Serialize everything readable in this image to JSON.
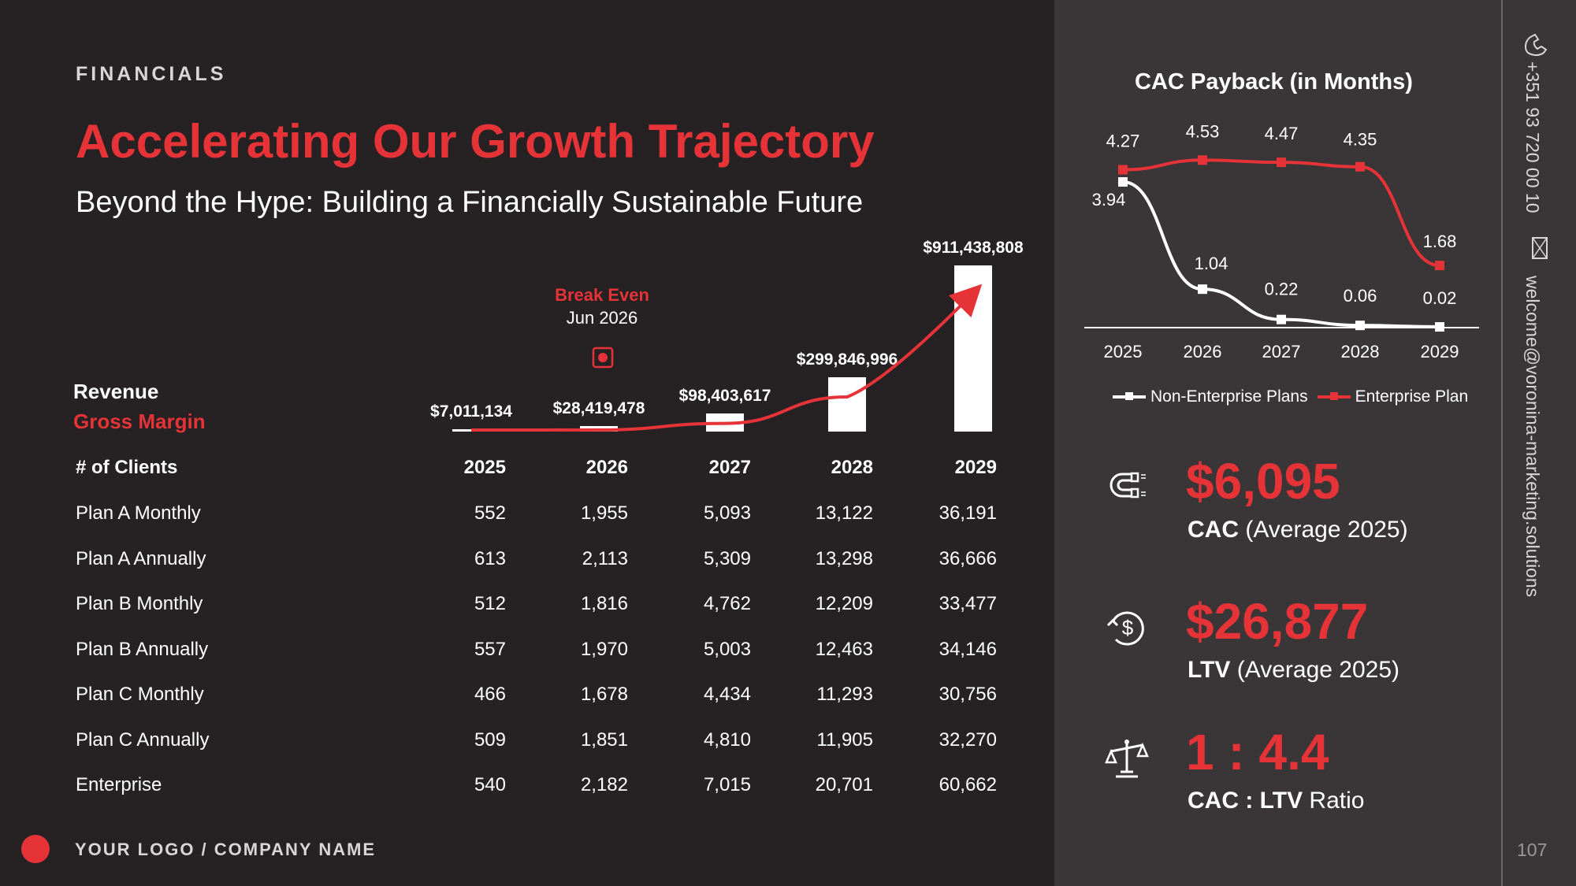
{
  "header": {
    "eyebrow": "FINANCIALS",
    "title": "Accelerating Our Growth Trajectory",
    "subtitle": "Beyond the Hype: Building a Financially Sustainable Future"
  },
  "chart_data": [
    {
      "type": "bar",
      "categories": [
        "2025",
        "2026",
        "2027",
        "2028",
        "2029"
      ],
      "series": [
        {
          "name": "Revenue",
          "values": [
            7011134,
            28419478,
            98403617,
            299846996,
            911438808
          ]
        },
        {
          "name": "Gross Margin",
          "values": [
            1000000,
            9000000,
            45000000,
            190000000,
            760000000
          ]
        }
      ],
      "value_labels": [
        "$7,011,134",
        "$28,419,478",
        "$98,403,617",
        "$299,846,996",
        "$911,438,808"
      ],
      "legend": [
        "Revenue",
        "Gross Margin"
      ],
      "legend_position": "left",
      "annotation": {
        "title": "Break Even",
        "date": "Jun 2026"
      },
      "ylim": [
        0,
        911438808
      ]
    },
    {
      "type": "line",
      "title": "CAC Payback (in Months)",
      "categories": [
        "2025",
        "2026",
        "2027",
        "2028",
        "2029"
      ],
      "series": [
        {
          "name": "Non-Enterprise Plans",
          "values": [
            3.94,
            1.04,
            0.22,
            0.06,
            0.02
          ],
          "color": "#ffffff"
        },
        {
          "name": "Enterprise Plan",
          "values": [
            4.27,
            4.53,
            4.47,
            4.35,
            1.68
          ],
          "color": "#e63338"
        }
      ],
      "ylim": [
        0,
        4.6
      ],
      "legend_position": "bottom"
    }
  ],
  "table": {
    "header": "# of Clients",
    "years": [
      "2025",
      "2026",
      "2027",
      "2028",
      "2029"
    ],
    "rows": [
      {
        "label": "Plan A Monthly",
        "values": [
          "552",
          "1,955",
          "5,093",
          "13,122",
          "36,191"
        ]
      },
      {
        "label": "Plan A Annually",
        "values": [
          "613",
          "2,113",
          "5,309",
          "13,298",
          "36,666"
        ]
      },
      {
        "label": "Plan B Monthly",
        "values": [
          "512",
          "1,816",
          "4,762",
          "12,209",
          "33,477"
        ]
      },
      {
        "label": "Plan B Annually",
        "values": [
          "557",
          "1,970",
          "5,003",
          "12,463",
          "34,146"
        ]
      },
      {
        "label": "Plan C Monthly",
        "values": [
          "466",
          "1,678",
          "4,434",
          "11,293",
          "30,756"
        ]
      },
      {
        "label": "Plan C Annually",
        "values": [
          "509",
          "1,851",
          "4,810",
          "11,905",
          "32,270"
        ]
      },
      {
        "label": "Enterprise",
        "values": [
          "540",
          "2,182",
          "7,015",
          "20,701",
          "60,662"
        ]
      }
    ]
  },
  "metrics": [
    {
      "value": "$6,095",
      "label_bold": "CAC",
      "label_rest": " (Average 2025)",
      "icon": "magnet-icon"
    },
    {
      "value": "$26,877",
      "label_bold": "LTV",
      "label_rest": " (Average 2025)",
      "icon": "dollar-cycle-icon"
    },
    {
      "value": "1 : 4.4",
      "label_bold": "CAC : LTV",
      "label_rest": " Ratio",
      "icon": "scale-icon"
    }
  ],
  "contact": {
    "phone": "+351 93 720 00 10",
    "email": "welcome@voronina-marketing.solutions"
  },
  "footer": {
    "logo_text": "YOUR LOGO / COMPANY NAME",
    "page_number": "107"
  },
  "colors": {
    "accent": "#e63338",
    "background": "#262223",
    "panel": "#3a3637"
  }
}
